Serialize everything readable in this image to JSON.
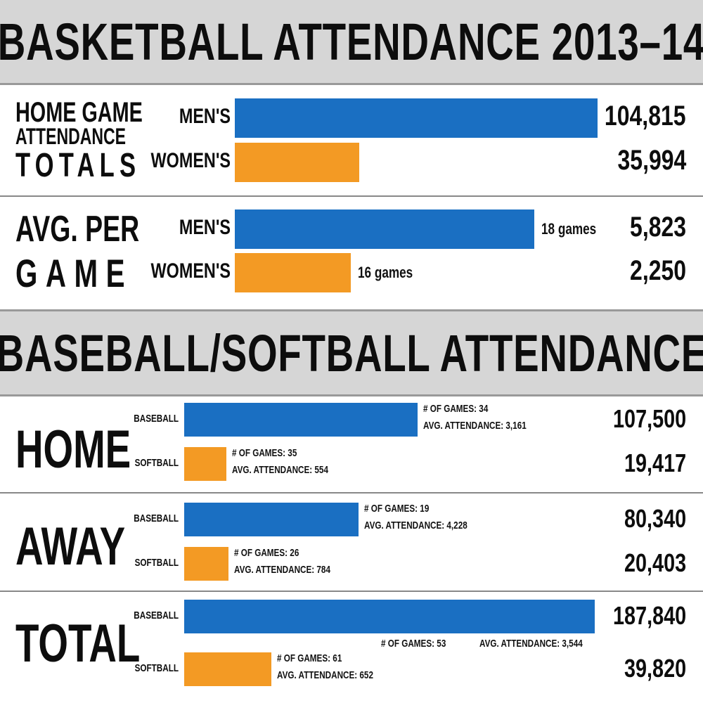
{
  "basketball": {
    "title": "BASKETBALL ATTENDANCE 2013–14",
    "home": {
      "label_line1": "HOME GAME",
      "label_line2": "ATTENDANCE",
      "label_line3": "TOTALS"
    },
    "avg": {
      "label_line1": "AVG. PER",
      "label_line2": "GAME"
    }
  },
  "baseball": {
    "title": "BASEBALL/SOFTBALL ATTENDANCE",
    "home_label": "HOME",
    "away_label": "AWAY",
    "total_label": "TOTAL"
  },
  "colors": {
    "blue": "#1a6fc2",
    "orange": "#f39a24",
    "header_bg": "#d6d6d6"
  },
  "chart_data": [
    {
      "type": "bar",
      "group": "HOME GAME ATTENDANCE TOTALS",
      "categories": [
        "MEN'S",
        "WOMEN'S"
      ],
      "values": [
        104815,
        35994
      ],
      "value_labels": [
        "104,815",
        "35,994"
      ]
    },
    {
      "type": "bar",
      "group": "AVG. PER GAME",
      "categories": [
        "MEN'S",
        "WOMEN'S"
      ],
      "values": [
        5823,
        2250
      ],
      "value_labels": [
        "5,823",
        "2,250"
      ],
      "annotations": [
        "18 games",
        "16 games"
      ]
    },
    {
      "type": "bar",
      "group": "HOME",
      "categories": [
        "BASEBALL",
        "SOFTBALL"
      ],
      "values": [
        107500,
        19417
      ],
      "value_labels": [
        "107,500",
        "19,417"
      ],
      "annotations": [
        {
          "games": "# OF GAMES: 34",
          "avg": "AVG. ATTENDANCE: 3,161"
        },
        {
          "games": "# OF GAMES: 35",
          "avg": "AVG. ATTENDANCE: 554"
        }
      ]
    },
    {
      "type": "bar",
      "group": "AWAY",
      "categories": [
        "BASEBALL",
        "SOFTBALL"
      ],
      "values": [
        80340,
        20403
      ],
      "value_labels": [
        "80,340",
        "20,403"
      ],
      "annotations": [
        {
          "games": "# OF GAMES: 19",
          "avg": "AVG. ATTENDANCE: 4,228"
        },
        {
          "games": "# OF GAMES: 26",
          "avg": "AVG. ATTENDANCE: 784"
        }
      ]
    },
    {
      "type": "bar",
      "group": "TOTAL",
      "categories": [
        "BASEBALL",
        "SOFTBALL"
      ],
      "values": [
        187840,
        39820
      ],
      "value_labels": [
        "187,840",
        "39,820"
      ],
      "annotations": [
        {
          "games": "# OF GAMES: 53",
          "avg": "AVG. ATTENDANCE: 3,544"
        },
        {
          "games": "# OF GAMES: 61",
          "avg": "AVG. ATTENDANCE: 652"
        }
      ]
    }
  ]
}
